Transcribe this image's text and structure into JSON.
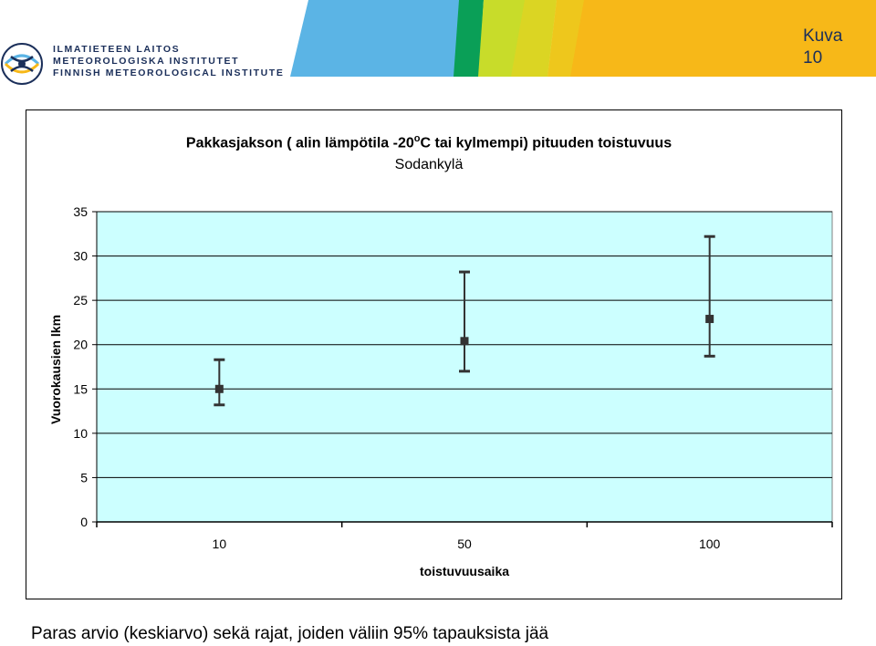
{
  "header": {
    "logo": {
      "line1": "ILMATIETEEN LAITOS",
      "line2": "METEOROLOGISKA INSTITUTET",
      "line3": "FINNISH METEOROLOGICAL INSTITUTE"
    },
    "figure_label": "Kuva",
    "figure_number": "10"
  },
  "chart_data": {
    "type": "scatter",
    "title_main": "Pakkasjakson  ( alin lämpötila -20",
    "title_sup": "o",
    "title_rest": "C tai kylmempi) pituuden toistuvuus",
    "subtitle": "Sodankylä",
    "xlabel": "toistuvuusaika",
    "ylabel": "Vuorokausien lkm",
    "categories": [
      "10",
      "50",
      "100"
    ],
    "ylim": [
      0,
      35
    ],
    "yticks": [
      "0",
      "5",
      "10",
      "15",
      "20",
      "25",
      "30",
      "35"
    ],
    "grid": true,
    "plot_background": "#ccffff",
    "series": [
      {
        "values": [
          15.0,
          20.4,
          22.9
        ],
        "lower": [
          13.2,
          17.0,
          18.7
        ],
        "upper": [
          18.3,
          28.2,
          32.2
        ],
        "color": "#333333"
      }
    ]
  },
  "caption": "Paras arvio (keskiarvo)  sekä rajat, joiden väliin 95% tapauksista jää"
}
